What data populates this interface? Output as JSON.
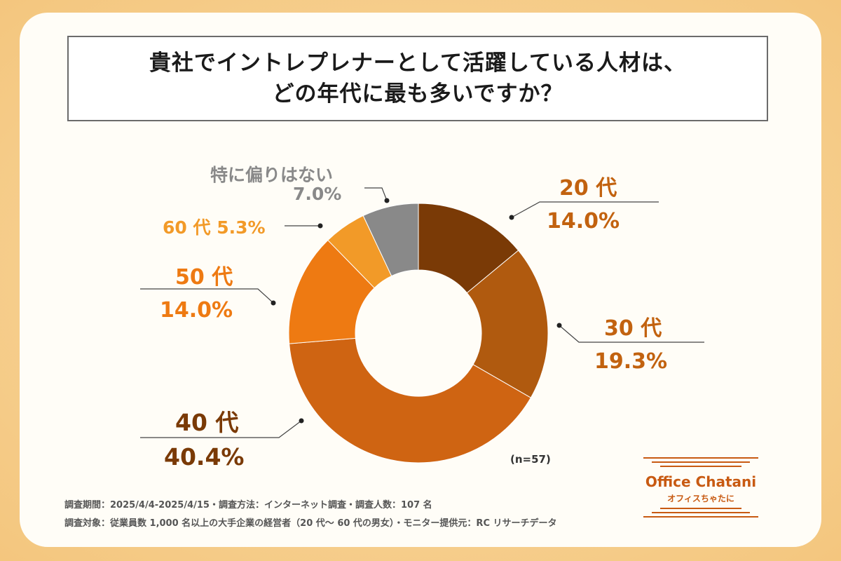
{
  "title": {
    "line1": "貴社でイントレプレナーとして活躍している人材は、",
    "line2": "どの年代に最も多いですか？"
  },
  "chart_data": {
    "type": "pie",
    "donut": true,
    "categories": [
      "20 代",
      "30 代",
      "40 代",
      "50 代",
      "60 代",
      "特に偏りはない"
    ],
    "values": [
      14.0,
      19.3,
      40.4,
      14.0,
      5.3,
      7.0
    ],
    "value_labels": [
      "14.0%",
      "19.3%",
      "40.4%",
      "14.0%",
      "5.3%",
      "7.0%"
    ],
    "colors": [
      "#7a3a06",
      "#b05a0f",
      "#cf6412",
      "#ee7a12",
      "#f29a28",
      "#898989"
    ],
    "label_colors": [
      "#c2620f",
      "#c2620f",
      "#7a3a06",
      "#ee7a12",
      "#f29a28",
      "#898989"
    ],
    "start_angle_deg": 0,
    "direction": "clockwise",
    "sample_size": "(n=57)"
  },
  "labels": {
    "s20_name": "20 代",
    "s20_value": "14.0%",
    "s30_name": "30 代",
    "s30_value": "19.3%",
    "s40_name": "40 代",
    "s40_value": "40.4%",
    "s50_name": "50 代",
    "s50_value": "14.0%",
    "s60_combined": "60 代  5.3%",
    "none_name": "特に偏りはない",
    "none_value": "7.0%"
  },
  "footnotes": {
    "line1": "調査期間：2025/4/4-2025/4/15・調査方法：インターネット調査・調査人数：107 名",
    "line2": "調査対象：従業員数 1,000 名以上の大手企業の経営者（20 代～ 60 代の男女）・モニター提供元：RC リサーチデータ"
  },
  "logo": {
    "main": "Office Chatani",
    "sub": "オフィスちゃたに"
  }
}
